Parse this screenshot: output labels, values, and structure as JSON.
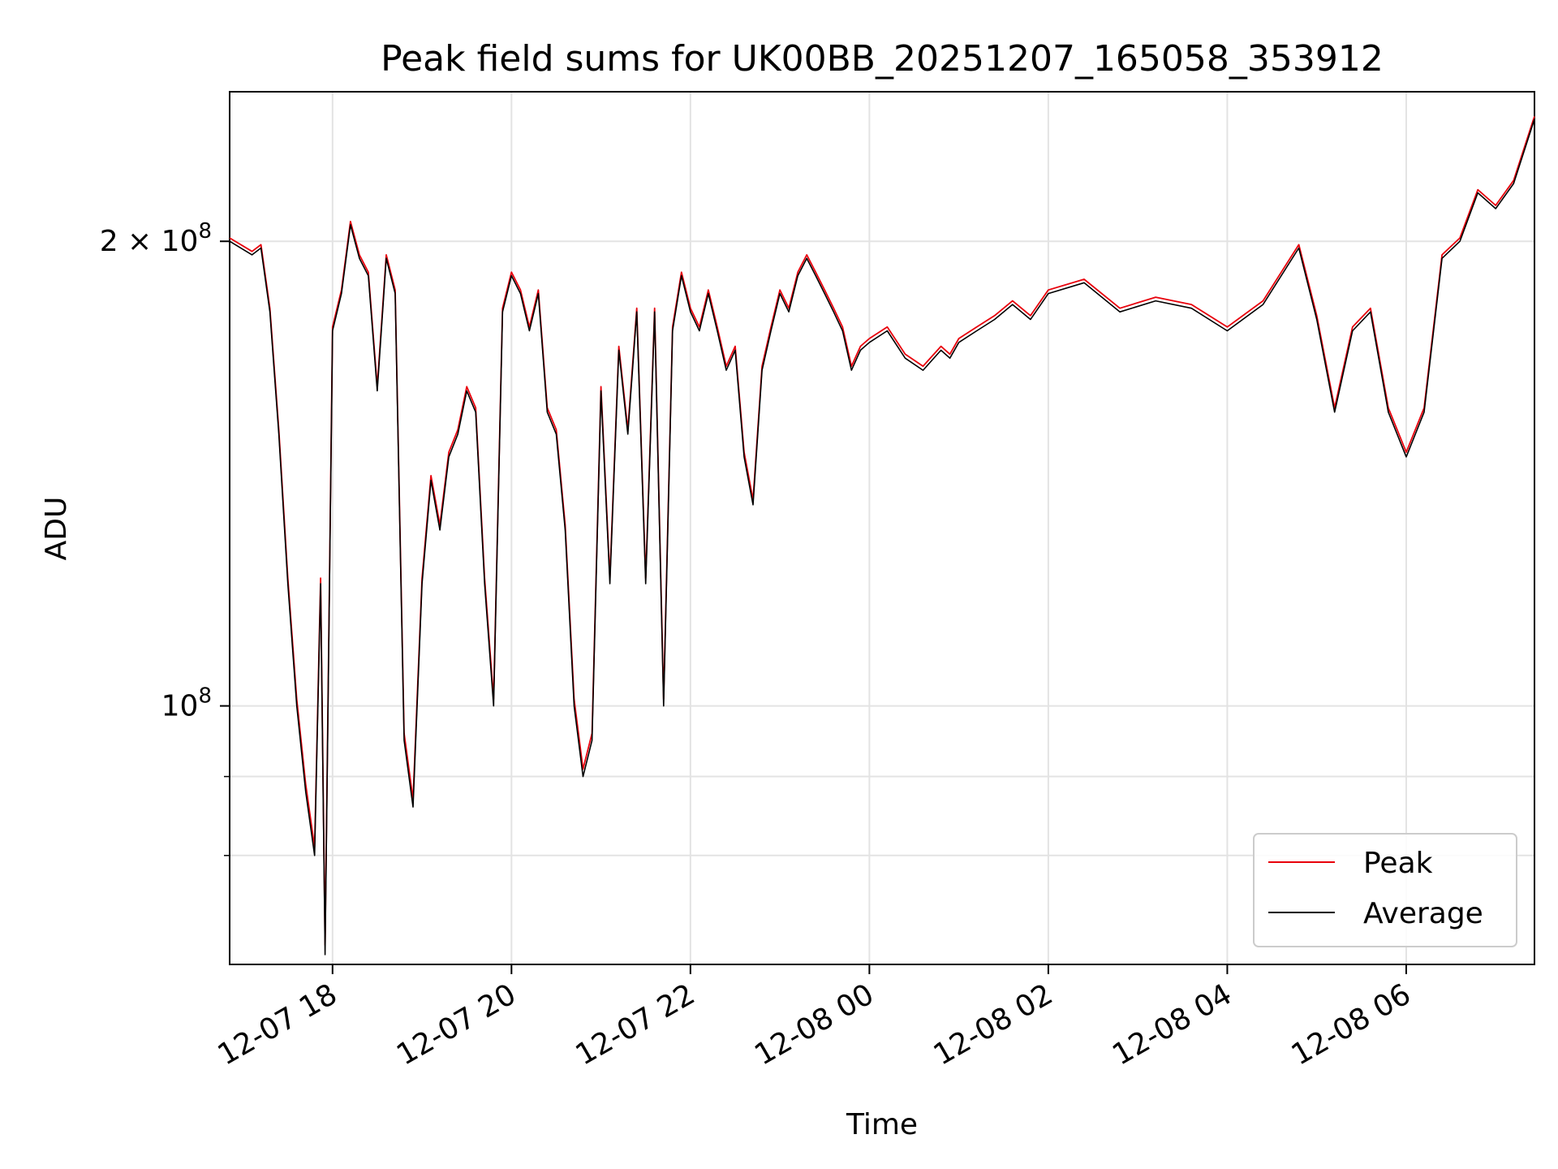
{
  "chart_data": {
    "type": "line",
    "title": "Peak field sums for UK00BB_20251207_165058_353912",
    "xlabel": "Time",
    "ylabel": "ADU",
    "yscale": "log",
    "xlim": [
      "2025-12-07 16:51",
      "2025-12-08 07:26"
    ],
    "ylim": [
      68000000,
      250000000
    ],
    "grid": true,
    "legend_position": "lower-right",
    "x_ticks": [
      "12-07 18",
      "12-07 20",
      "12-07 22",
      "12-08 00",
      "12-08 02",
      "12-08 04",
      "12-08 06"
    ],
    "x_tick_times": [
      "2025-12-07 18:00",
      "2025-12-07 20:00",
      "2025-12-07 22:00",
      "2025-12-08 00:00",
      "2025-12-08 02:00",
      "2025-12-08 04:00",
      "2025-12-08 06:00"
    ],
    "y_major_ticks": [
      100000000,
      200000000
    ],
    "y_tick_labels": [
      {
        "mantissa": "",
        "exp": "8"
      },
      {
        "mantissa": "2 × ",
        "exp": "8"
      }
    ],
    "y_minor_ticks": [
      80000000,
      90000000
    ],
    "series": [
      {
        "name": "Peak",
        "color": "#e8000b"
      },
      {
        "name": "Average",
        "color": "#000000"
      }
    ],
    "x": [
      "2025-12-07 16:51",
      "2025-12-07 17:06",
      "2025-12-07 17:12",
      "2025-12-07 17:18",
      "2025-12-07 17:24",
      "2025-12-07 17:30",
      "2025-12-07 17:36",
      "2025-12-07 17:42",
      "2025-12-07 17:48",
      "2025-12-07 17:52",
      "2025-12-07 17:55",
      "2025-12-07 18:00",
      "2025-12-07 18:06",
      "2025-12-07 18:12",
      "2025-12-07 18:18",
      "2025-12-07 18:24",
      "2025-12-07 18:30",
      "2025-12-07 18:36",
      "2025-12-07 18:42",
      "2025-12-07 18:48",
      "2025-12-07 18:54",
      "2025-12-07 19:00",
      "2025-12-07 19:06",
      "2025-12-07 19:12",
      "2025-12-07 19:18",
      "2025-12-07 19:24",
      "2025-12-07 19:30",
      "2025-12-07 19:36",
      "2025-12-07 19:42",
      "2025-12-07 19:48",
      "2025-12-07 19:54",
      "2025-12-07 20:00",
      "2025-12-07 20:06",
      "2025-12-07 20:12",
      "2025-12-07 20:18",
      "2025-12-07 20:24",
      "2025-12-07 20:30",
      "2025-12-07 20:36",
      "2025-12-07 20:42",
      "2025-12-07 20:48",
      "2025-12-07 20:54",
      "2025-12-07 21:00",
      "2025-12-07 21:06",
      "2025-12-07 21:12",
      "2025-12-07 21:18",
      "2025-12-07 21:24",
      "2025-12-07 21:30",
      "2025-12-07 21:36",
      "2025-12-07 21:42",
      "2025-12-07 21:48",
      "2025-12-07 21:54",
      "2025-12-07 22:00",
      "2025-12-07 22:06",
      "2025-12-07 22:12",
      "2025-12-07 22:18",
      "2025-12-07 22:24",
      "2025-12-07 22:30",
      "2025-12-07 22:36",
      "2025-12-07 22:42",
      "2025-12-07 22:48",
      "2025-12-07 22:54",
      "2025-12-07 23:00",
      "2025-12-07 23:06",
      "2025-12-07 23:12",
      "2025-12-07 23:18",
      "2025-12-07 23:24",
      "2025-12-07 23:30",
      "2025-12-07 23:36",
      "2025-12-07 23:42",
      "2025-12-07 23:48",
      "2025-12-07 23:54",
      "2025-12-08 00:00",
      "2025-12-08 00:12",
      "2025-12-08 00:24",
      "2025-12-08 00:36",
      "2025-12-08 00:48",
      "2025-12-08 00:54",
      "2025-12-08 01:00",
      "2025-12-08 01:12",
      "2025-12-08 01:24",
      "2025-12-08 01:36",
      "2025-12-08 01:48",
      "2025-12-08 02:00",
      "2025-12-08 02:24",
      "2025-12-08 02:48",
      "2025-12-08 03:12",
      "2025-12-08 03:36",
      "2025-12-08 04:00",
      "2025-12-08 04:24",
      "2025-12-08 04:48",
      "2025-12-08 05:00",
      "2025-12-08 05:12",
      "2025-12-08 05:24",
      "2025-12-08 05:36",
      "2025-12-08 05:48",
      "2025-12-08 06:00",
      "2025-12-08 06:12",
      "2025-12-08 06:24",
      "2025-12-08 06:36",
      "2025-12-08 06:48",
      "2025-12-08 07:00",
      "2025-12-08 07:12",
      "2025-12-08 07:26"
    ],
    "average": [
      200,
      196,
      198,
      180,
      150,
      120,
      100,
      88,
      80,
      120,
      69,
      175,
      185,
      205,
      195,
      190,
      160,
      195,
      185,
      95,
      86,
      120,
      140,
      130,
      145,
      150,
      160,
      155,
      120,
      100,
      180,
      190,
      185,
      175,
      185,
      155,
      150,
      130,
      100,
      90,
      95,
      160,
      120,
      170,
      150,
      180,
      120,
      180,
      100,
      175,
      190,
      180,
      175,
      185,
      175,
      165,
      170,
      145,
      135,
      165,
      175,
      185,
      180,
      190,
      195,
      190,
      185,
      180,
      175,
      165,
      170,
      172,
      175,
      168,
      165,
      170,
      168,
      172,
      175,
      178,
      182,
      178,
      185,
      188,
      180,
      183,
      181,
      175,
      182,
      198,
      178,
      155,
      175,
      180,
      155,
      145,
      155,
      195,
      200,
      215,
      210,
      218,
      240
    ],
    "peak": [
      201,
      197,
      199,
      181,
      151,
      121,
      101,
      89,
      81,
      121,
      70,
      176,
      186,
      206,
      196,
      191,
      161,
      196,
      186,
      96,
      87,
      121,
      141,
      131,
      146,
      151,
      161,
      156,
      121,
      101,
      181,
      191,
      186,
      176,
      186,
      156,
      151,
      131,
      101,
      91,
      96,
      161,
      121,
      171,
      151,
      181,
      121,
      181,
      101,
      176,
      191,
      181,
      176,
      186,
      176,
      166,
      171,
      146,
      136,
      166,
      176,
      186,
      181,
      191,
      196,
      191,
      186,
      181,
      176,
      166,
      171,
      173,
      176,
      169,
      166,
      171,
      169,
      173,
      176,
      179,
      183,
      179,
      186,
      189,
      181,
      184,
      182,
      176,
      183,
      199,
      179,
      156,
      176,
      181,
      156,
      146,
      156,
      196,
      201,
      216,
      211,
      219,
      241
    ],
    "value_unit": "millions of ADU"
  }
}
